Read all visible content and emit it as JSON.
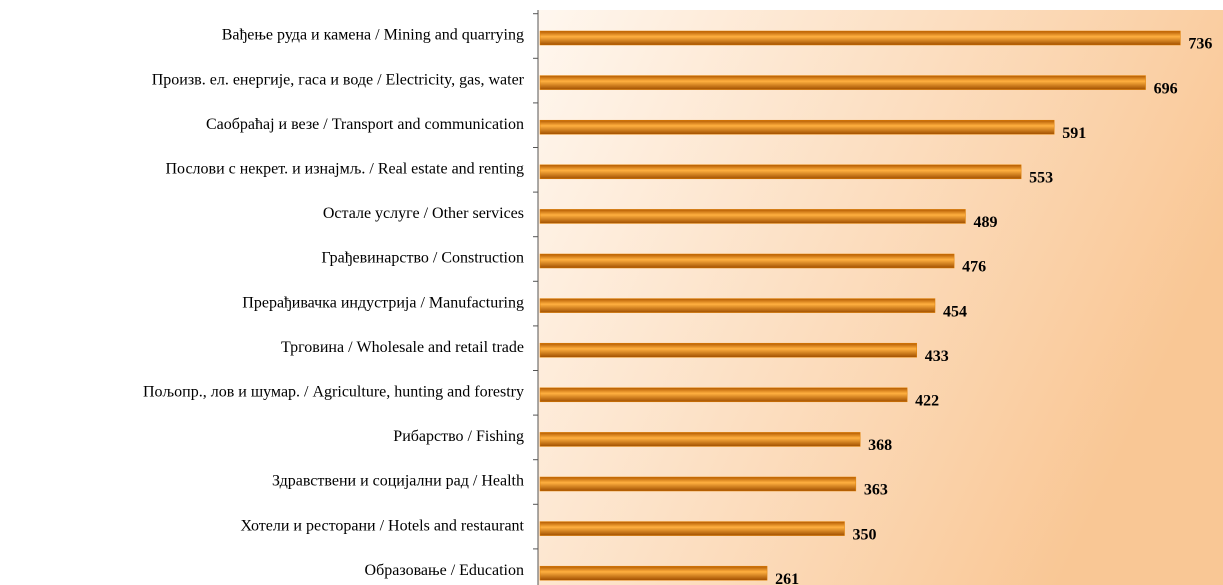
{
  "chart_data": {
    "type": "barh",
    "categories": [
      "Вађење руда и камена / Mining and quarrying",
      "Произв. ел. енергије, гаса и воде / Electricity, gas, water",
      "Саобраћај  и везе / Transport and communication",
      "Послови с некрет. и изнајмљ. / Real estate and renting",
      "Остале услуге / Other services",
      "Грађевинарство / Construction",
      "Прерађивачка индустрија / Manufacturing",
      "Трговина / Wholesale and retail trade",
      "Пољопр., лов и шумар. / Agriculture, hunting and forestry",
      "Рибарство / Fishing",
      "Здравствени и социјални рад / Health",
      "Хотели и ресторани / Hotels and restaurant",
      "Образовање / Education"
    ],
    "values": [
      736,
      696,
      591,
      553,
      489,
      476,
      454,
      433,
      422,
      368,
      363,
      350,
      261
    ],
    "color": "#e07f00",
    "xlim": [
      0,
      785
    ]
  }
}
